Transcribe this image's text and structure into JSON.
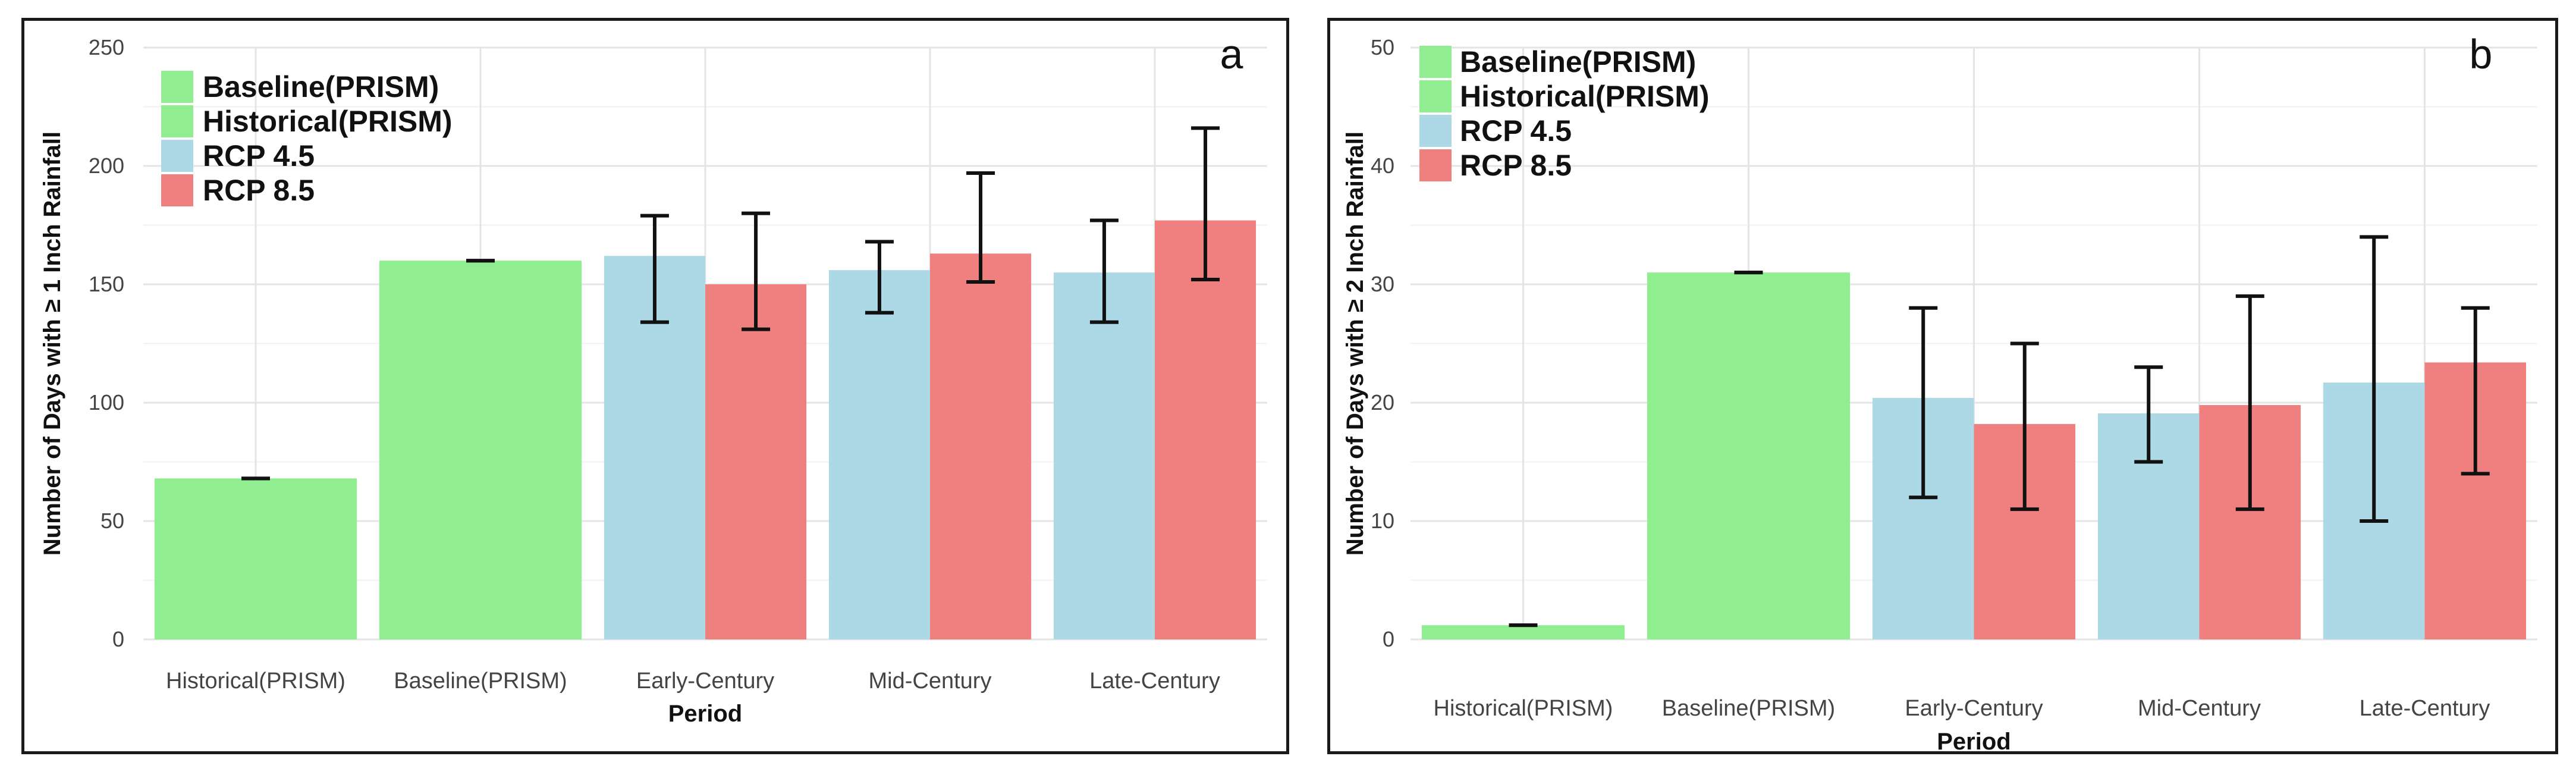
{
  "chart_data": [
    {
      "type": "bar",
      "panel_label": "a",
      "title": "",
      "xlabel": "Period",
      "ylabel": "Number of Days with ≥ 1 Inch Rainfall",
      "ylim": [
        0,
        250
      ],
      "yticks": [
        0,
        50,
        100,
        150,
        200,
        250
      ],
      "grid": true,
      "legend_position": "top-left",
      "legend": [
        {
          "name": "Baseline(PRISM)",
          "color": "#90EE90"
        },
        {
          "name": "Historical(PRISM)",
          "color": "#90EE90"
        },
        {
          "name": "RCP 4.5",
          "color": "#ADD8E6"
        },
        {
          "name": "RCP 8.5",
          "color": "#F08080"
        }
      ],
      "categories": [
        "Historical(PRISM)",
        "Baseline(PRISM)",
        "Early-Century",
        "Mid-Century",
        "Late-Century"
      ],
      "bars": [
        {
          "category": "Historical(PRISM)",
          "series": "Historical(PRISM)",
          "value": 68,
          "error": [
            68,
            68
          ],
          "color": "#90EE90",
          "slot": "full"
        },
        {
          "category": "Baseline(PRISM)",
          "series": "Baseline(PRISM)",
          "value": 160,
          "error": [
            160,
            160
          ],
          "color": "#90EE90",
          "slot": "full"
        },
        {
          "category": "Early-Century",
          "series": "RCP 4.5",
          "value": 162,
          "error": [
            134,
            179
          ],
          "color": "#ADD8E6",
          "slot": "left"
        },
        {
          "category": "Early-Century",
          "series": "RCP 8.5",
          "value": 150,
          "error": [
            131,
            180
          ],
          "color": "#F08080",
          "slot": "right"
        },
        {
          "category": "Mid-Century",
          "series": "RCP 4.5",
          "value": 156,
          "error": [
            138,
            168
          ],
          "color": "#ADD8E6",
          "slot": "left"
        },
        {
          "category": "Mid-Century",
          "series": "RCP 8.5",
          "value": 163,
          "error": [
            151,
            197
          ],
          "color": "#F08080",
          "slot": "right"
        },
        {
          "category": "Late-Century",
          "series": "RCP 4.5",
          "value": 155,
          "error": [
            134,
            177
          ],
          "color": "#ADD8E6",
          "slot": "left"
        },
        {
          "category": "Late-Century",
          "series": "RCP 8.5",
          "value": 177,
          "error": [
            152,
            216
          ],
          "color": "#F08080",
          "slot": "right"
        }
      ]
    },
    {
      "type": "bar",
      "panel_label": "b",
      "title": "",
      "xlabel": "Period",
      "ylabel": "Number of Days with ≥ 2 Inch Rainfall",
      "ylim": [
        0,
        50
      ],
      "yticks": [
        0,
        10,
        20,
        30,
        40,
        50
      ],
      "grid": true,
      "legend_position": "top-left",
      "legend": [
        {
          "name": "Baseline(PRISM)",
          "color": "#90EE90"
        },
        {
          "name": "Historical(PRISM)",
          "color": "#90EE90"
        },
        {
          "name": "RCP 4.5",
          "color": "#ADD8E6"
        },
        {
          "name": "RCP 8.5",
          "color": "#F08080"
        }
      ],
      "categories": [
        "Historical(PRISM)",
        "Baseline(PRISM)",
        "Early-Century",
        "Mid-Century",
        "Late-Century"
      ],
      "bars": [
        {
          "category": "Historical(PRISM)",
          "series": "Historical(PRISM)",
          "value": 1.2,
          "error": [
            1.2,
            1.2
          ],
          "color": "#90EE90",
          "slot": "full"
        },
        {
          "category": "Baseline(PRISM)",
          "series": "Baseline(PRISM)",
          "value": 31,
          "error": [
            31,
            31
          ],
          "color": "#90EE90",
          "slot": "full"
        },
        {
          "category": "Early-Century",
          "series": "RCP 4.5",
          "value": 20.4,
          "error": [
            12,
            28
          ],
          "color": "#ADD8E6",
          "slot": "left"
        },
        {
          "category": "Early-Century",
          "series": "RCP 8.5",
          "value": 18.2,
          "error": [
            11,
            25
          ],
          "color": "#F08080",
          "slot": "right"
        },
        {
          "category": "Mid-Century",
          "series": "RCP 4.5",
          "value": 19.1,
          "error": [
            15,
            23
          ],
          "color": "#ADD8E6",
          "slot": "left"
        },
        {
          "category": "Mid-Century",
          "series": "RCP 8.5",
          "value": 19.8,
          "error": [
            11,
            29
          ],
          "color": "#F08080",
          "slot": "right"
        },
        {
          "category": "Late-Century",
          "series": "RCP 4.5",
          "value": 21.7,
          "error": [
            10,
            34
          ],
          "color": "#ADD8E6",
          "slot": "left"
        },
        {
          "category": "Late-Century",
          "series": "RCP 8.5",
          "value": 23.4,
          "error": [
            14,
            28
          ],
          "color": "#F08080",
          "slot": "right"
        }
      ]
    }
  ]
}
